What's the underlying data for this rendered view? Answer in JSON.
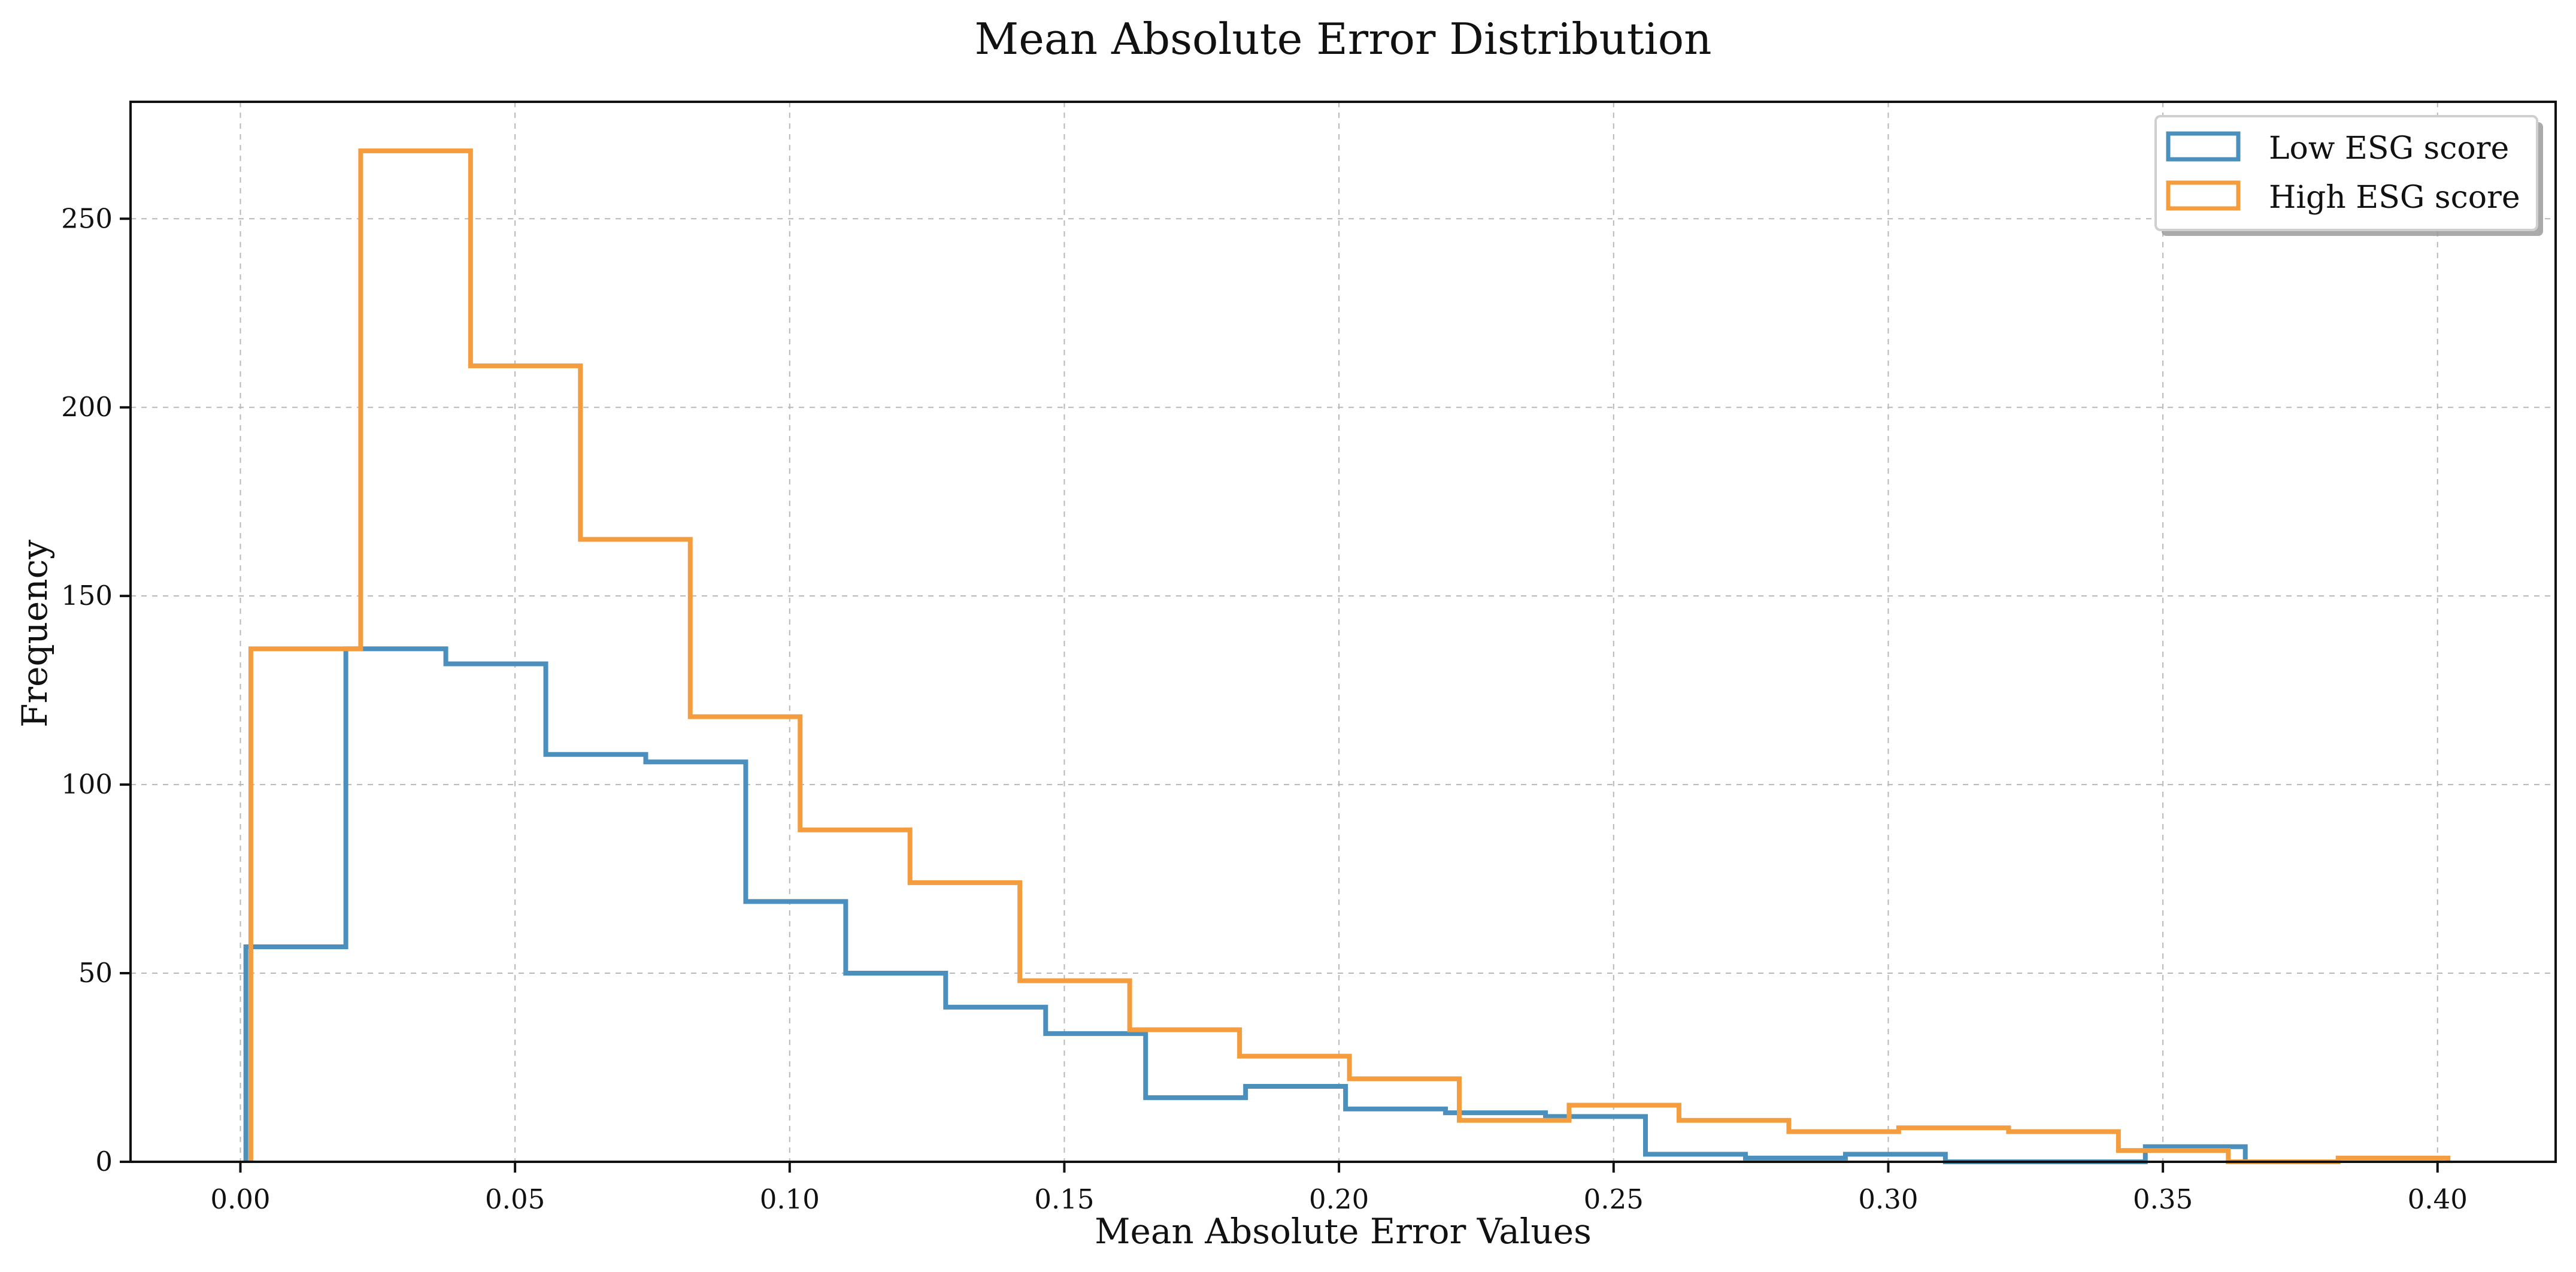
{
  "chart_data": {
    "type": "step-histogram",
    "title": "Mean Absolute Error Distribution",
    "xlabel": "Mean Absolute Error Values",
    "ylabel": "Frequency",
    "xlim": [
      -0.02,
      0.4215
    ],
    "ylim": [
      0,
      281
    ],
    "x_ticks": [
      0.0,
      0.05,
      0.1,
      0.15,
      0.2,
      0.25,
      0.3,
      0.35,
      0.4
    ],
    "x_tick_labels": [
      "0.00",
      "0.05",
      "0.10",
      "0.15",
      "0.20",
      "0.25",
      "0.30",
      "0.35",
      "0.40"
    ],
    "y_ticks": [
      0,
      50,
      100,
      150,
      200,
      250
    ],
    "y_tick_labels": [
      "0",
      "50",
      "100",
      "150",
      "200",
      "250"
    ],
    "grid": true,
    "legend_position": "top-right",
    "series": [
      {
        "name": "Low ESG score",
        "color": "#4b8fbd",
        "bin_edges": [
          0.001,
          0.0192,
          0.0374,
          0.0556,
          0.0738,
          0.092,
          0.1102,
          0.1284,
          0.1466,
          0.1648,
          0.183,
          0.2012,
          0.2194,
          0.2376,
          0.2558,
          0.274,
          0.2922,
          0.3104,
          0.3286,
          0.3468,
          0.365
        ],
        "values": [
          57,
          136,
          132,
          108,
          106,
          69,
          50,
          41,
          34,
          17,
          20,
          14,
          13,
          12,
          2,
          1,
          2,
          0,
          0,
          4
        ]
      },
      {
        "name": "High ESG score",
        "color": "#f49d3f",
        "bin_edges": [
          0.0019,
          0.0219,
          0.0419,
          0.0619,
          0.0819,
          0.1019,
          0.1219,
          0.1419,
          0.1619,
          0.1819,
          0.2019,
          0.2219,
          0.2419,
          0.2619,
          0.2819,
          0.3019,
          0.3219,
          0.3419,
          0.3619,
          0.3819,
          0.4019
        ],
        "values": [
          136,
          268,
          211,
          165,
          118,
          88,
          74,
          48,
          35,
          28,
          22,
          11,
          15,
          11,
          8,
          9,
          8,
          3,
          0,
          1
        ]
      }
    ]
  }
}
